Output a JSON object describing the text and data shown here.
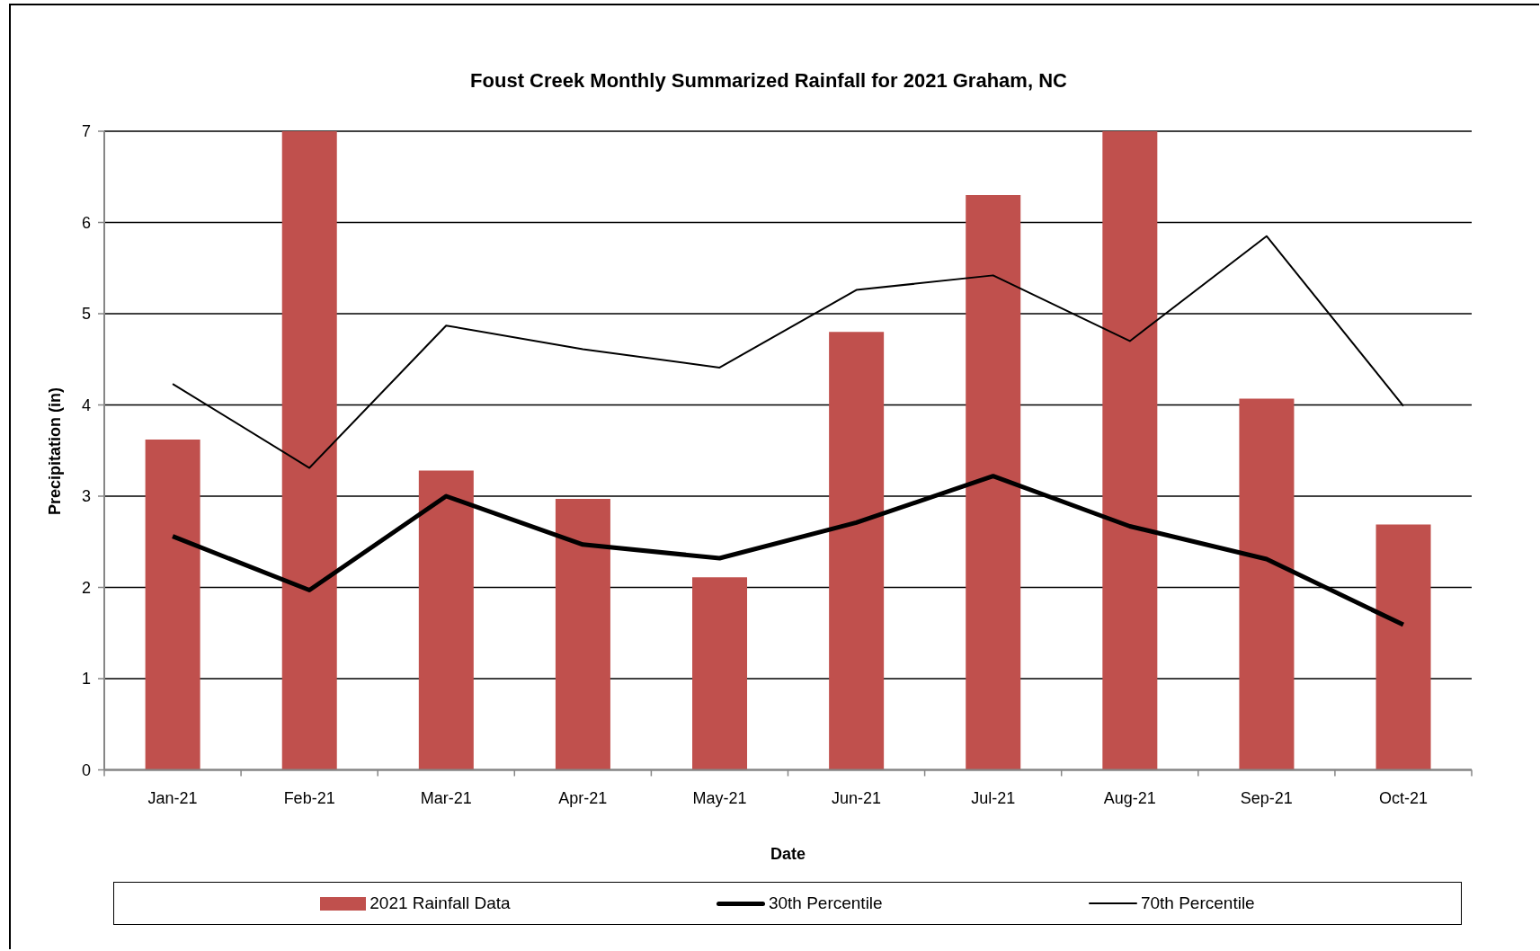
{
  "chart_data": {
    "type": "bar",
    "title": "Foust Creek Monthly Summarized Rainfall for 2021 Graham, NC",
    "xlabel": "Date",
    "ylabel": "Precipitation (in)",
    "categories": [
      "Jan-21",
      "Feb-21",
      "Mar-21",
      "Apr-21",
      "May-21",
      "Jun-21",
      "Jul-21",
      "Aug-21",
      "Sep-21",
      "Oct-21"
    ],
    "series": [
      {
        "name": "2021 Rainfall Data",
        "color": "#c0504d",
        "values": [
          3.62,
          7,
          3.28,
          2.97,
          2.11,
          4.8,
          6.3,
          7,
          4.07,
          2.69
        ]
      },
      {
        "name": "30th Percentile",
        "type": "line",
        "color": "#000000",
        "values": [
          2.56,
          1.97,
          3.0,
          2.47,
          2.32,
          2.71,
          3.22,
          2.67,
          2.31,
          1.59
        ]
      },
      {
        "name": "70th Percentile",
        "type": "line",
        "color": "#000000",
        "values": [
          4.23,
          3.31,
          4.87,
          4.61,
          4.41,
          5.26,
          5.42,
          4.7,
          5.85,
          3.99
        ]
      }
    ],
    "ylim": [
      0,
      7
    ],
    "yticks": [
      0,
      1,
      2,
      3,
      4,
      5,
      6,
      7
    ],
    "grid": "y",
    "legend": "bottom",
    "marker": "none",
    "line_style": "solid"
  }
}
